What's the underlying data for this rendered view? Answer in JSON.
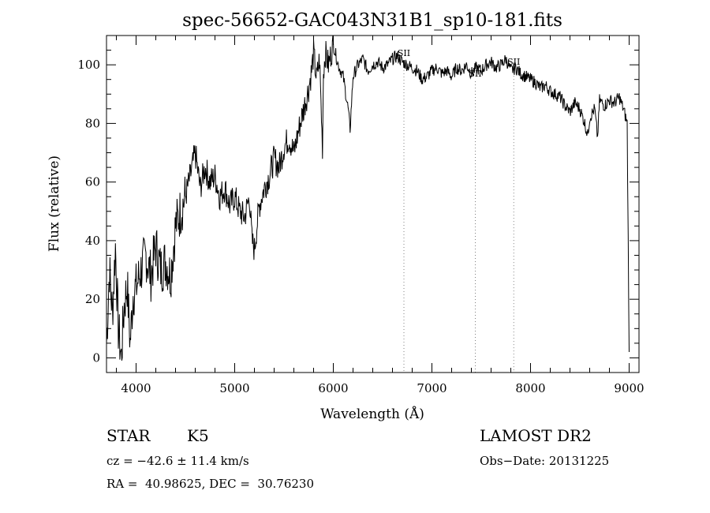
{
  "chart_data": {
    "type": "line",
    "title": "spec-56652-GAC043N31B1_sp10-181.fits",
    "xlabel": "Wavelength (Å)",
    "ylabel": "Flux (relative)",
    "xlim": [
      3700,
      9100
    ],
    "ylim": [
      -5,
      110
    ],
    "xticks": [
      4000,
      5000,
      6000,
      7000,
      8000,
      9000
    ],
    "yticks": [
      0,
      20,
      40,
      60,
      80,
      100
    ],
    "grid": false,
    "line_color": "#000000",
    "marker_color": "#808080",
    "series": [
      {
        "x": [
          3700,
          3730,
          3760,
          3790,
          3820,
          3850,
          3880,
          3910,
          3940,
          3970,
          4000,
          4050,
          4100,
          4150,
          4200,
          4250,
          4300,
          4350,
          4400,
          4450,
          4500,
          4550,
          4600,
          4650,
          4700,
          4750,
          4800,
          4850,
          4900,
          4950,
          5000,
          5050,
          5100,
          5150,
          5175,
          5200,
          5225,
          5250,
          5300,
          5350,
          5400,
          5450,
          5500,
          5550,
          5600,
          5650,
          5700,
          5750,
          5780,
          5800,
          5830,
          5860,
          5890,
          5900,
          5920,
          5950,
          6000,
          6050,
          6100,
          6150,
          6170,
          6200,
          6250,
          6300,
          6350,
          6400,
          6450,
          6500,
          6550,
          6600,
          6650,
          6700,
          6750,
          6800,
          6850,
          6900,
          6950,
          7000,
          7050,
          7100,
          7150,
          7200,
          7250,
          7300,
          7350,
          7400,
          7450,
          7500,
          7550,
          7600,
          7650,
          7700,
          7750,
          7800,
          7850,
          7900,
          7950,
          8000,
          8050,
          8100,
          8150,
          8200,
          8250,
          8300,
          8350,
          8400,
          8450,
          8500,
          8550,
          8580,
          8600,
          8650,
          8680,
          8700,
          8750,
          8800,
          8850,
          8900,
          8950,
          8980,
          9000
        ],
        "y": [
          5,
          30,
          15,
          38,
          10,
          0,
          18,
          25,
          5,
          22,
          24,
          30,
          35,
          28,
          38,
          30,
          33,
          28,
          45,
          50,
          55,
          62,
          70,
          58,
          65,
          60,
          62,
          55,
          58,
          52,
          55,
          50,
          48,
          55,
          40,
          37,
          45,
          52,
          58,
          62,
          68,
          65,
          72,
          75,
          70,
          78,
          85,
          92,
          98,
          104,
          95,
          102,
          72,
          98,
          104,
          100,
          107,
          100,
          96,
          85,
          78,
          96,
          100,
          102,
          98,
          100,
          101,
          99,
          100,
          102,
          103,
          101,
          100,
          99,
          98,
          95,
          96,
          98,
          99,
          97,
          98,
          96,
          99,
          98,
          100,
          97,
          99,
          98,
          100,
          101,
          99,
          100,
          102,
          98,
          99,
          97,
          96,
          95,
          94,
          92,
          93,
          91,
          90,
          89,
          86,
          84,
          87,
          85,
          80,
          76,
          82,
          85,
          75,
          88,
          86,
          88,
          87,
          89,
          84,
          80,
          2
        ],
        "color": "#000000"
      }
    ],
    "annotations": [
      {
        "label": "SII",
        "x": 6716,
        "label_y": 103
      },
      {
        "label": "SII",
        "x": 7440,
        "label_y": 96
      },
      {
        "label": "SII",
        "x": 7830,
        "label_y": 100
      }
    ]
  },
  "info": {
    "class_label": "STAR",
    "subclass_label": "K5",
    "survey_label": "LAMOST DR2",
    "cz_line": "cz = −42.6 ± 11.4 km/s",
    "obs_date_line": "Obs−Date: 20131225",
    "coords_line": "RA =  40.98625, DEC =  30.76230"
  }
}
